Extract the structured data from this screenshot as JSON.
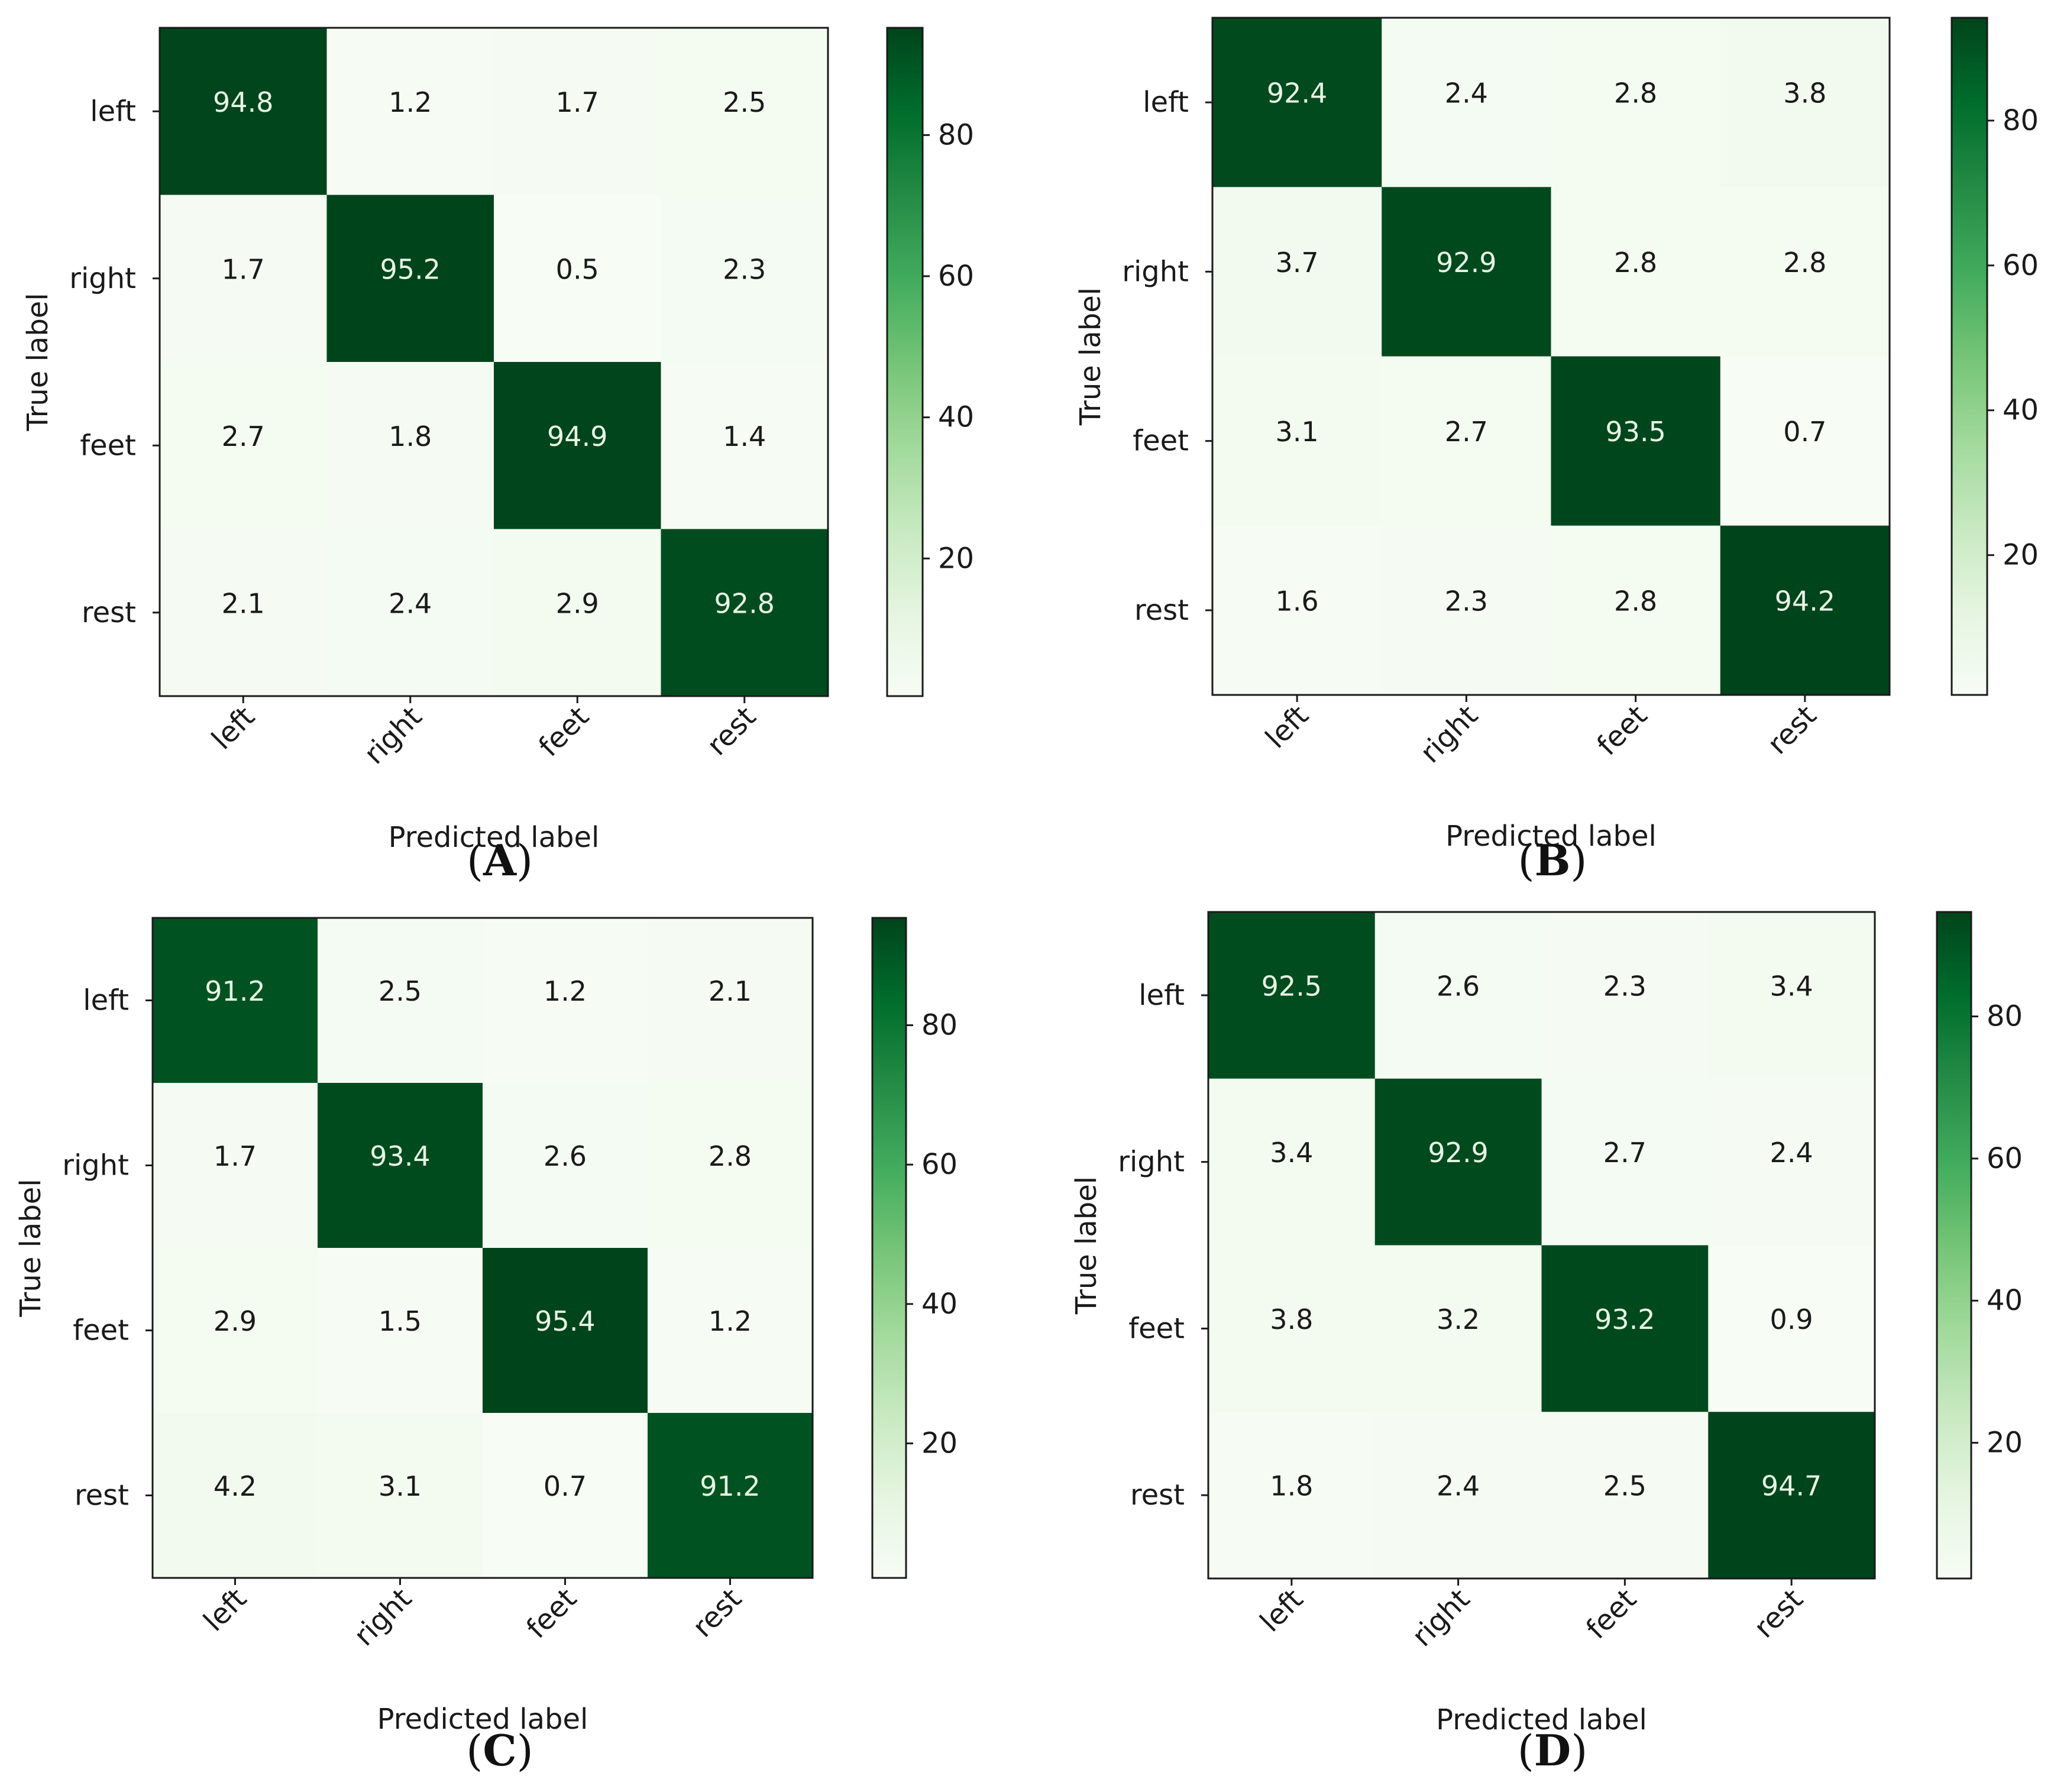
{
  "chart_data": [
    {
      "type": "heatmap",
      "panel_label": "A",
      "xlabel": "Predicted label",
      "ylabel": "True label",
      "x_categories": [
        "left",
        "right",
        "feet",
        "rest"
      ],
      "y_categories": [
        "left",
        "right",
        "feet",
        "rest"
      ],
      "values": [
        [
          94.8,
          1.2,
          1.7,
          2.5
        ],
        [
          1.7,
          95.2,
          0.5,
          2.3
        ],
        [
          2.7,
          1.8,
          94.9,
          1.4
        ],
        [
          2.1,
          2.4,
          2.9,
          92.8
        ]
      ],
      "colorbar": {
        "ticks": [
          "20",
          "40",
          "60",
          "80"
        ],
        "range": [
          0.5,
          95.2
        ],
        "colormap": "Greens"
      }
    },
    {
      "type": "heatmap",
      "panel_label": "B",
      "xlabel": "Predicted label",
      "ylabel": "True label",
      "x_categories": [
        "left",
        "right",
        "feet",
        "rest"
      ],
      "y_categories": [
        "left",
        "right",
        "feet",
        "rest"
      ],
      "values": [
        [
          92.4,
          2.4,
          2.8,
          3.8
        ],
        [
          3.7,
          92.9,
          2.8,
          2.8
        ],
        [
          3.1,
          2.7,
          93.5,
          0.7
        ],
        [
          1.6,
          2.3,
          2.8,
          94.2
        ]
      ],
      "colorbar": {
        "ticks": [
          "20",
          "40",
          "60",
          "80"
        ],
        "range": [
          0.7,
          94.2
        ],
        "colormap": "Greens"
      }
    },
    {
      "type": "heatmap",
      "panel_label": "C",
      "xlabel": "Predicted label",
      "ylabel": "True label",
      "x_categories": [
        "left",
        "right",
        "feet",
        "rest"
      ],
      "y_categories": [
        "left",
        "right",
        "feet",
        "rest"
      ],
      "values": [
        [
          91.2,
          2.5,
          1.2,
          2.1
        ],
        [
          1.7,
          93.4,
          2.6,
          2.8
        ],
        [
          2.9,
          1.5,
          95.4,
          1.2
        ],
        [
          4.2,
          3.1,
          0.7,
          91.2
        ]
      ],
      "colorbar": {
        "ticks": [
          "20",
          "40",
          "60",
          "80"
        ],
        "range": [
          0.7,
          95.4
        ],
        "colormap": "Greens"
      }
    },
    {
      "type": "heatmap",
      "panel_label": "D",
      "xlabel": "Predicted label",
      "ylabel": "True label",
      "x_categories": [
        "left",
        "right",
        "feet",
        "rest"
      ],
      "y_categories": [
        "left",
        "right",
        "feet",
        "rest"
      ],
      "values": [
        [
          92.5,
          2.6,
          2.3,
          3.4
        ],
        [
          3.4,
          92.9,
          2.7,
          2.4
        ],
        [
          3.8,
          3.2,
          93.2,
          0.9
        ],
        [
          1.8,
          2.4,
          2.5,
          94.7
        ]
      ],
      "colorbar": {
        "ticks": [
          "20",
          "40",
          "60",
          "80"
        ],
        "range": [
          0.9,
          94.7
        ],
        "colormap": "Greens"
      }
    }
  ]
}
